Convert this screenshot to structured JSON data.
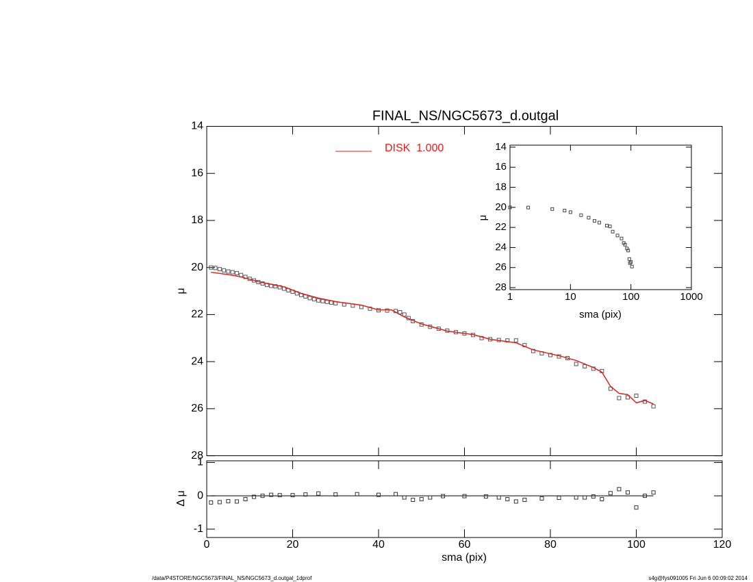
{
  "footer_left": "/data/P4STORE/NGC5673/FINAL_NS/NGC5673_d.outgal_1dprof",
  "footer_right": "s4g@fys091005  Fri Jun  6 00:09:02 2014",
  "chart_data": [
    {
      "type": "scatter",
      "title": "FINAL_NS/NGC5673_d.outgal",
      "y_label": "μ",
      "xlim": [
        0,
        120
      ],
      "xticks": [
        0,
        20,
        40,
        60,
        80,
        100,
        120
      ],
      "xtick_labels": false,
      "ylim": [
        14,
        28
      ],
      "yticks": [
        14,
        16,
        18,
        20,
        22,
        24,
        26,
        28
      ],
      "y_reversed": true,
      "series": [
        {
          "style": "points",
          "color": "#555555",
          "x": [
            1,
            2,
            3,
            4,
            5,
            6,
            7,
            8,
            9,
            10,
            11,
            12,
            13,
            14,
            15,
            16,
            17,
            18,
            19,
            20,
            21,
            22,
            23,
            24,
            25,
            26,
            27,
            28,
            29,
            30,
            32,
            34,
            36,
            38,
            40,
            42,
            44,
            45,
            46,
            47,
            48,
            50,
            52,
            54,
            56,
            58,
            60,
            62,
            64,
            66,
            68,
            70,
            72,
            74,
            76,
            78,
            80,
            82,
            84,
            86,
            88,
            90,
            92,
            94,
            96,
            98,
            100,
            102,
            104
          ],
          "values": [
            20.0,
            20.02,
            20.07,
            20.12,
            20.17,
            20.2,
            20.24,
            20.32,
            20.4,
            20.48,
            20.55,
            20.62,
            20.68,
            20.74,
            20.78,
            20.8,
            20.84,
            20.9,
            20.97,
            21.03,
            21.1,
            21.17,
            21.23,
            21.3,
            21.35,
            21.4,
            21.43,
            21.46,
            21.49,
            21.52,
            21.57,
            21.62,
            21.68,
            21.75,
            21.82,
            21.83,
            21.85,
            21.9,
            22.0,
            22.15,
            22.28,
            22.42,
            22.52,
            22.6,
            22.68,
            22.75,
            22.8,
            22.87,
            23.0,
            23.05,
            23.08,
            23.1,
            23.1,
            23.3,
            23.55,
            23.65,
            23.72,
            23.78,
            23.85,
            24.1,
            24.2,
            24.3,
            24.4,
            25.15,
            25.55,
            25.52,
            25.45,
            25.7,
            25.9
          ]
        },
        {
          "style": "line",
          "name": "DISK  1.000",
          "color": "#e0201b",
          "x": [
            1,
            5,
            8,
            12,
            16,
            18,
            22,
            26,
            30,
            36,
            40,
            43,
            46,
            50,
            56,
            62,
            66,
            72,
            76,
            82,
            86,
            90,
            92,
            94,
            96,
            98,
            100,
            102,
            104
          ],
          "values": [
            20.2,
            20.3,
            20.4,
            20.6,
            20.75,
            20.82,
            21.1,
            21.3,
            21.45,
            21.6,
            21.8,
            21.8,
            22.1,
            22.4,
            22.7,
            22.85,
            23.05,
            23.2,
            23.5,
            23.75,
            23.95,
            24.25,
            24.45,
            25.05,
            25.35,
            25.4,
            25.75,
            25.65,
            25.8
          ]
        }
      ]
    },
    {
      "type": "scatter",
      "y_label": "Δ μ",
      "x_label": "sma (pix)",
      "xlim": [
        0,
        120
      ],
      "xticks": [
        0,
        20,
        40,
        60,
        80,
        100,
        120
      ],
      "ylim": [
        -1.25,
        1.05
      ],
      "yticks": [
        -1,
        0,
        1
      ],
      "reference_line": 0,
      "series": [
        {
          "style": "points",
          "color": "#333333",
          "x": [
            1,
            3,
            5,
            7,
            9,
            11,
            13,
            15,
            17,
            20,
            23,
            26,
            30,
            35,
            40,
            44,
            46,
            48,
            50,
            52,
            55,
            60,
            65,
            68,
            70,
            72,
            74,
            78,
            82,
            86,
            88,
            90,
            92,
            94,
            96,
            98,
            100,
            102,
            104
          ],
          "values": [
            -0.2,
            -0.19,
            -0.16,
            -0.17,
            -0.1,
            -0.03,
            0.0,
            0.03,
            0.02,
            0.02,
            0.04,
            0.07,
            0.04,
            0.05,
            0.03,
            0.05,
            -0.05,
            -0.12,
            -0.1,
            -0.05,
            -0.01,
            -0.01,
            -0.02,
            -0.05,
            -0.1,
            -0.17,
            -0.12,
            -0.08,
            -0.06,
            -0.05,
            -0.05,
            -0.02,
            -0.1,
            0.08,
            0.2,
            0.1,
            -0.35,
            0.0,
            0.1
          ]
        }
      ]
    },
    {
      "type": "scatter",
      "y_label": "μ",
      "x_label": "sma (pix)",
      "xlog": true,
      "xlim": [
        1,
        1000
      ],
      "xticks": [
        1,
        10,
        100,
        1000
      ],
      "ylim": [
        13.8,
        28.2
      ],
      "yticks": [
        14,
        16,
        18,
        20,
        22,
        24,
        26,
        28
      ],
      "y_reversed": true,
      "series": [
        {
          "style": "points",
          "color": "#444444",
          "x": [
            1,
            2,
            5,
            8,
            10,
            15,
            20,
            25,
            30,
            40,
            45,
            50,
            60,
            70,
            76,
            80,
            86,
            90,
            94,
            96,
            100,
            104
          ],
          "values": [
            20.0,
            20.02,
            20.17,
            20.32,
            20.48,
            20.78,
            21.03,
            21.35,
            21.52,
            21.82,
            21.9,
            22.42,
            22.8,
            23.1,
            23.55,
            23.72,
            24.1,
            24.3,
            25.15,
            25.55,
            25.45,
            25.9
          ]
        }
      ]
    }
  ]
}
